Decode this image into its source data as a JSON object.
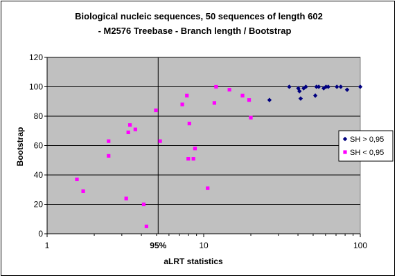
{
  "chart_data": {
    "type": "scatter",
    "title_line1": "Biological nucleic sequences, 50 sequences of length 602",
    "title_line2": "- M2576 Treebase -  Branch length / Bootstrap",
    "xlabel": "aLRT statistics",
    "ylabel": "Bootstrap",
    "x_scale": "log",
    "xlim": [
      1,
      100
    ],
    "ylim": [
      0,
      120
    ],
    "x_ticks": [
      {
        "value": 1,
        "label": "1"
      },
      {
        "value": 10,
        "label": "10"
      },
      {
        "value": 100,
        "label": "100"
      }
    ],
    "y_ticks": [
      0,
      20,
      40,
      60,
      80,
      100,
      120
    ],
    "y_tick_labels": [
      "0",
      "20",
      "40",
      "60",
      "80",
      "100",
      "120"
    ],
    "grid": "horizontal",
    "plot_bg": "#c0c0c0",
    "reference_line": {
      "x": 5.12,
      "label": "95%"
    },
    "legend_position": "right",
    "series": [
      {
        "name": "SH > 0,95",
        "marker": "diamond",
        "color": "#00007f",
        "points": [
          [
            26.3,
            91
          ],
          [
            35.2,
            100
          ],
          [
            40.2,
            99
          ],
          [
            40.9,
            97
          ],
          [
            41.6,
            92
          ],
          [
            43.5,
            99
          ],
          [
            44.9,
            100
          ],
          [
            51.6,
            94
          ],
          [
            52.5,
            100
          ],
          [
            54.3,
            100
          ],
          [
            58.4,
            99
          ],
          [
            60.4,
            100
          ],
          [
            62.4,
            100
          ],
          [
            70.9,
            100
          ],
          [
            75.1,
            100
          ],
          [
            82.4,
            98
          ],
          [
            100,
            100
          ]
        ]
      },
      {
        "name": "SH < 0,95",
        "marker": "square",
        "color": "#ff00ff",
        "points": [
          [
            1.55,
            37
          ],
          [
            1.7,
            29
          ],
          [
            2.47,
            63
          ],
          [
            2.47,
            53
          ],
          [
            3.2,
            24
          ],
          [
            3.3,
            69
          ],
          [
            3.38,
            74
          ],
          [
            3.66,
            71
          ],
          [
            4.14,
            20
          ],
          [
            4.31,
            5
          ],
          [
            4.95,
            84
          ],
          [
            5.27,
            63
          ],
          [
            7.3,
            88
          ],
          [
            7.81,
            94
          ],
          [
            8.1,
            75
          ],
          [
            7.97,
            51
          ],
          [
            8.6,
            51
          ],
          [
            8.8,
            58
          ],
          [
            10.6,
            31
          ],
          [
            11.7,
            89
          ],
          [
            12.0,
            100
          ],
          [
            14.6,
            98
          ],
          [
            17.7,
            94
          ],
          [
            19.5,
            91
          ],
          [
            20.0,
            79
          ]
        ]
      }
    ]
  }
}
